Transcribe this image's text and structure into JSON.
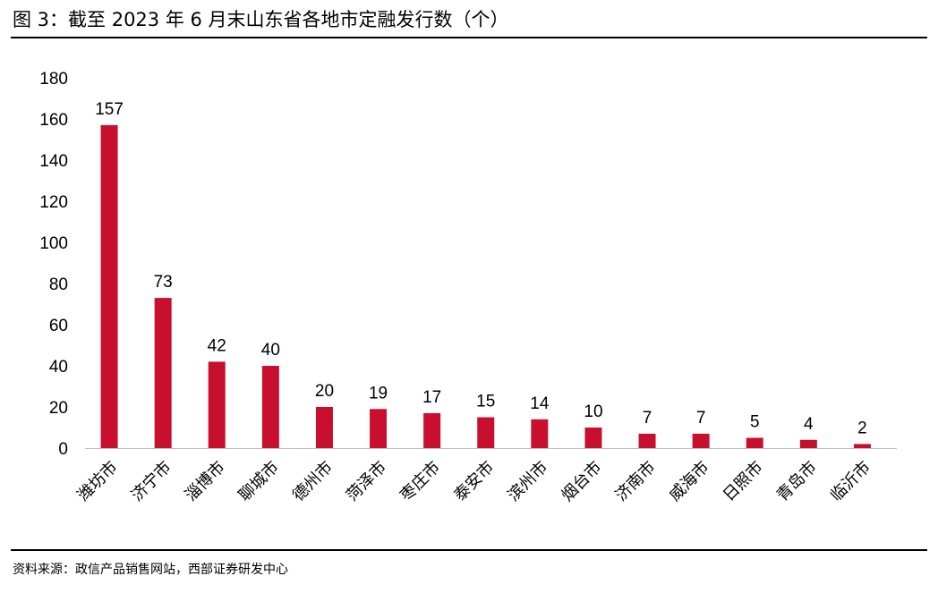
{
  "figure": {
    "title": "图 3：截至 2023 年 6 月末山东省各地市定融发行数（个）",
    "source": "资料来源：政信产品销售网站，西部证券研发中心"
  },
  "chart_data": {
    "type": "bar",
    "categories": [
      "潍坊市",
      "济宁市",
      "淄博市",
      "聊城市",
      "德州市",
      "菏泽市",
      "枣庄市",
      "泰安市",
      "滨州市",
      "烟台市",
      "济南市",
      "威海市",
      "日照市",
      "青岛市",
      "临沂市"
    ],
    "values": [
      157,
      73,
      42,
      40,
      20,
      19,
      17,
      15,
      14,
      10,
      7,
      7,
      5,
      4,
      2
    ],
    "ylim": [
      0,
      180
    ],
    "yticks": [
      0,
      20,
      40,
      60,
      80,
      100,
      120,
      140,
      160,
      180
    ],
    "grid": false,
    "legend": "none",
    "bar_color": "#c8102e",
    "axis_color": "#bfbfbf"
  }
}
